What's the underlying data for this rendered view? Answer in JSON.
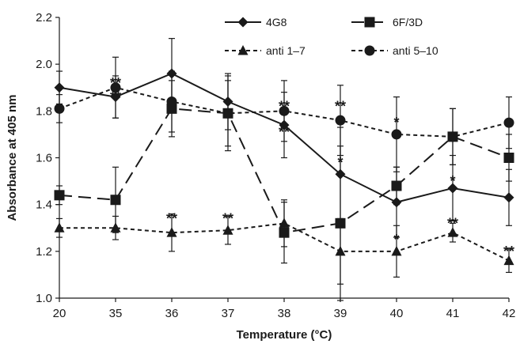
{
  "chart_data": {
    "type": "line",
    "categories": [
      "20",
      "35",
      "36",
      "37",
      "38",
      "39",
      "40",
      "41",
      "42"
    ],
    "xlabel": "Temperature (°C)",
    "ylabel": "Absorbance at 405 nm",
    "ylim": [
      1.0,
      2.2
    ],
    "yticks": [
      "1.0",
      "1.2",
      "1.4",
      "1.6",
      "1.8",
      "2.0",
      "2.2"
    ],
    "grid": false,
    "legend_position": "top-right",
    "series": [
      {
        "name": "4G8",
        "marker": "diamond",
        "dash": "solid",
        "values": [
          1.9,
          1.86,
          1.96,
          1.84,
          1.74,
          1.53,
          1.41,
          1.47,
          1.43
        ],
        "errors": [
          0.07,
          0.09,
          0.15,
          0.12,
          0.14,
          0.2,
          0.15,
          0.14,
          0.12
        ]
      },
      {
        "name": "6F/3D",
        "marker": "square",
        "dash": "long",
        "values": [
          1.44,
          1.42,
          1.81,
          1.79,
          1.28,
          1.32,
          1.48,
          1.69,
          1.6
        ],
        "errors": [
          0.04,
          0.14,
          0.12,
          0.14,
          0.13,
          0.33,
          0.08,
          0.12,
          0.1
        ]
      },
      {
        "name": "anti 1–7",
        "marker": "triangle",
        "dash": "short",
        "values": [
          1.3,
          1.3,
          1.28,
          1.29,
          1.32,
          1.2,
          1.2,
          1.28,
          1.16
        ],
        "errors": [
          0.04,
          0.05,
          0.08,
          0.06,
          0.1,
          0.14,
          0.11,
          0.04,
          0.05
        ]
      },
      {
        "name": "anti 5–10",
        "marker": "circle",
        "dash": "short",
        "values": [
          1.81,
          1.9,
          1.84,
          1.79,
          1.8,
          1.76,
          1.7,
          1.69,
          1.75
        ],
        "errors": [
          0.06,
          0.13,
          0.13,
          0.16,
          0.13,
          0.15,
          0.16,
          0.12,
          0.11
        ]
      }
    ],
    "annotations": [
      {
        "text": "**",
        "x": "35",
        "y": 1.92
      },
      {
        "text": "**",
        "x": "35",
        "y": 1.86
      },
      {
        "text": "**",
        "x": "36",
        "y": 1.34
      },
      {
        "text": "**",
        "x": "37",
        "y": 1.34
      },
      {
        "text": "**",
        "x": "38",
        "y": 1.82
      },
      {
        "text": "**",
        "x": "38",
        "y": 1.71
      },
      {
        "text": "**",
        "x": "39",
        "y": 1.82
      },
      {
        "text": "*",
        "x": "39",
        "y": 1.58
      },
      {
        "text": "*",
        "x": "40",
        "y": 1.75
      },
      {
        "text": "*",
        "x": "40",
        "y": 1.25
      },
      {
        "text": "*",
        "x": "41",
        "y": 1.5
      },
      {
        "text": "**",
        "x": "41",
        "y": 1.32
      },
      {
        "text": "**",
        "x": "42",
        "y": 1.2
      }
    ]
  },
  "colors": {
    "ink": "#1a1a1a",
    "background": "#ffffff"
  }
}
